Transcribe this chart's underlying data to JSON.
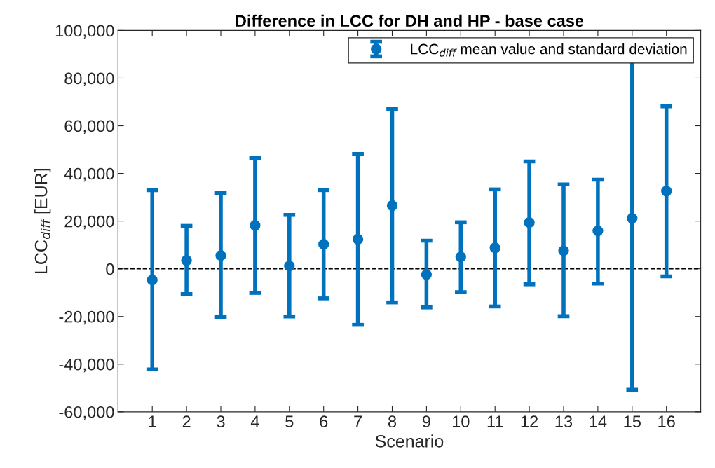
{
  "chart_data": {
    "type": "scatter",
    "title": "Difference in LCC for DH and HP - base case",
    "xlabel": "Scenario",
    "ylabel": "LCC$_{diff}$ [EUR]",
    "categories": [
      "1",
      "2",
      "3",
      "4",
      "5",
      "6",
      "7",
      "8",
      "9",
      "10",
      "11",
      "12",
      "13",
      "14",
      "15",
      "16"
    ],
    "series": [
      {
        "name": "LCC$_{diff}$ mean value and standard deviation",
        "color": "#0072bd",
        "values": [
          -4700,
          3500,
          5600,
          18200,
          1200,
          10300,
          12400,
          26500,
          -2400,
          5000,
          8800,
          19400,
          7600,
          15900,
          21200,
          32600
        ],
        "errors": [
          [
            -42200,
            33000
          ],
          [
            -10600,
            18000
          ],
          [
            -20300,
            31800
          ],
          [
            -10100,
            46600
          ],
          [
            -20000,
            22600
          ],
          [
            -12400,
            33000
          ],
          [
            -23500,
            48200
          ],
          [
            -14100,
            67000
          ],
          [
            -16200,
            11800
          ],
          [
            -9800,
            19500
          ],
          [
            -15800,
            33300
          ],
          [
            -6500,
            45000
          ],
          [
            -19900,
            35400
          ],
          [
            -6200,
            37400
          ],
          [
            -50700,
            93100
          ],
          [
            -3200,
            68200
          ]
        ]
      }
    ],
    "ylim": [
      -60000,
      100000
    ],
    "yticks": [
      {
        "value": -60000,
        "label": "-60,000"
      },
      {
        "value": -40000,
        "label": "-40,000"
      },
      {
        "value": -20000,
        "label": "-20,000"
      },
      0,
      {
        "value": 20000,
        "label": "20,000"
      },
      {
        "value": 40000,
        "label": "40,000"
      },
      {
        "value": 60000,
        "label": "60,000"
      },
      {
        "value": 80000,
        "label": "80,000"
      },
      {
        "value": 100000,
        "label": "100,000"
      }
    ],
    "ref_lines": [
      {
        "axis": "y",
        "value": 0,
        "color": "#000000",
        "line_style": "dashed"
      }
    ],
    "marker": "circle",
    "legend": "top right",
    "grid": false
  }
}
